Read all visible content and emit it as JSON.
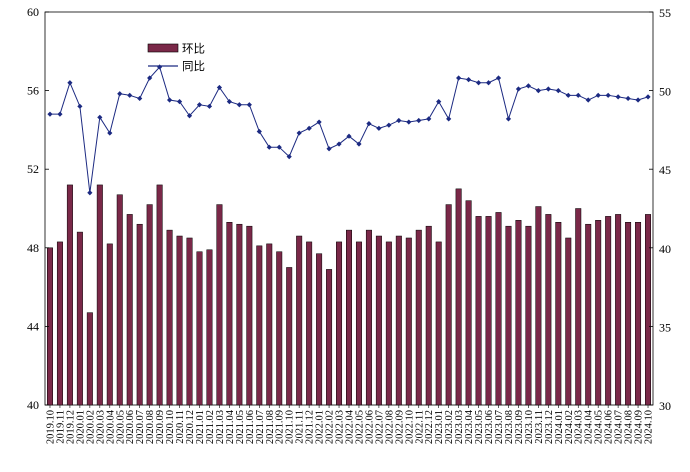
{
  "chart_data": {
    "type": "bar+line",
    "title": "",
    "categories": [
      "2019.10",
      "2019.11",
      "2019.12",
      "2020.01",
      "2020.02",
      "2020.03",
      "2020.04",
      "2020.05",
      "2020.06",
      "2020.07",
      "2020.08",
      "2020.09",
      "2020.10",
      "2020.11",
      "2020.12",
      "2021.01",
      "2021.02",
      "2021.03",
      "2021.04",
      "2021.05",
      "2021.06",
      "2021.07",
      "2021.08",
      "2021.09",
      "2021.10",
      "2021.11",
      "2021.12",
      "2022.01",
      "2022.02",
      "2022.03",
      "2022.04",
      "2022.05",
      "2022.06",
      "2022.07",
      "2022.08",
      "2022.09",
      "2022.10",
      "2022.11",
      "2022.12",
      "2023.01",
      "2023.02",
      "2023.03",
      "2023.04",
      "2023.05",
      "2023.06",
      "2023.07",
      "2023.08",
      "2023.09",
      "2023.10",
      "2023.11",
      "2023.12",
      "2024.01",
      "2024.02",
      "2024.03",
      "2024.04",
      "2024.05",
      "2024.06",
      "2024.07",
      "2024.08",
      "2024.09",
      "2024.10"
    ],
    "series": [
      {
        "name": "环比",
        "type": "bar",
        "axis": "left",
        "color": "#7a2848",
        "values": [
          48.0,
          48.3,
          51.2,
          48.8,
          44.7,
          51.2,
          48.2,
          50.7,
          49.7,
          49.2,
          50.2,
          51.2,
          48.9,
          48.6,
          48.5,
          47.8,
          47.9,
          50.2,
          49.3,
          49.2,
          49.1,
          48.1,
          48.2,
          47.8,
          47.0,
          48.6,
          48.3,
          47.7,
          46.9,
          48.3,
          48.9,
          48.3,
          48.9,
          48.6,
          48.3,
          48.6,
          48.5,
          48.9,
          49.1,
          48.3,
          50.2,
          51.0,
          50.4,
          49.6,
          49.6,
          49.8,
          49.1,
          49.4,
          49.1,
          50.1,
          49.7,
          49.3,
          48.5,
          50.0,
          49.2,
          49.4,
          49.6,
          49.7,
          49.3,
          49.3,
          49.7
        ]
      },
      {
        "name": "同比",
        "type": "line",
        "axis": "right",
        "color": "#1c2a82",
        "marker": "diamond",
        "values": [
          48.5,
          48.5,
          50.5,
          49.0,
          43.5,
          48.3,
          47.3,
          49.8,
          49.7,
          49.5,
          50.8,
          51.5,
          49.4,
          49.3,
          48.4,
          49.1,
          49.0,
          50.2,
          49.3,
          49.1,
          49.1,
          47.4,
          46.4,
          46.4,
          45.8,
          47.3,
          47.6,
          48.0,
          46.3,
          46.6,
          47.1,
          46.6,
          47.9,
          47.6,
          47.8,
          48.1,
          48.0,
          48.1,
          48.2,
          49.3,
          48.2,
          50.8,
          50.7,
          50.5,
          50.5,
          50.8,
          48.2,
          50.1,
          50.3,
          50.0,
          50.1,
          50.0,
          49.7,
          49.7,
          49.4,
          49.7,
          49.7,
          49.6,
          49.5,
          49.4,
          49.6
        ]
      }
    ],
    "y_left": {
      "min": 40,
      "max": 60,
      "ticks": [
        40,
        44,
        48,
        52,
        56,
        60
      ]
    },
    "y_right": {
      "min": 30,
      "max": 55,
      "ticks": [
        30,
        35,
        40,
        45,
        50,
        55
      ]
    },
    "legend": {
      "position": "top-left",
      "items": [
        "环比",
        "同比"
      ]
    },
    "grid": false,
    "xlabel": "",
    "ylabel": ""
  }
}
